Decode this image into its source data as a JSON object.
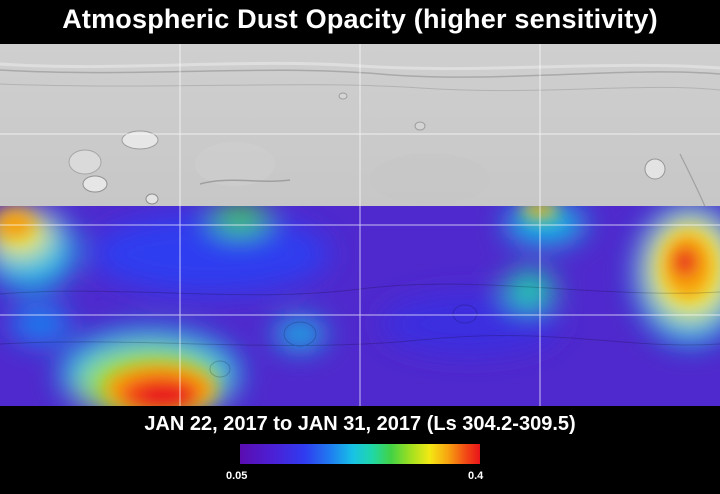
{
  "title": "Atmospheric Dust Opacity (higher sensitivity)",
  "date_range": "JAN 22, 2017 to JAN 31, 2017 (Ls 304.2-309.5)",
  "colorbar": {
    "min_label": "0.05",
    "max_label": "0.4",
    "colors": [
      "#5a0db0",
      "#2f3cf0",
      "#17c2e6",
      "#43d244",
      "#f3e814",
      "#f7a010",
      "#e8141a"
    ]
  },
  "map": {
    "grid_lines": "on",
    "hotspots": [
      {
        "name": "west-edge-high",
        "lon_frac": 0.02,
        "lat_frac": 0.25,
        "level": 0.32
      },
      {
        "name": "south-central-peak",
        "lon_frac": 0.22,
        "lat_frac": 0.88,
        "level": 0.38
      },
      {
        "name": "east-edge-peak",
        "lon_frac": 0.95,
        "lat_frac": 0.3,
        "level": 0.36
      },
      {
        "name": "north-top-high",
        "lon_frac": 0.75,
        "lat_frac": 0.02,
        "level": 0.3
      },
      {
        "name": "mid-east-green",
        "lon_frac": 0.74,
        "lat_frac": 0.42,
        "level": 0.18
      },
      {
        "name": "north-green-patch",
        "lon_frac": 0.33,
        "lat_frac": 0.05,
        "level": 0.16
      }
    ]
  }
}
